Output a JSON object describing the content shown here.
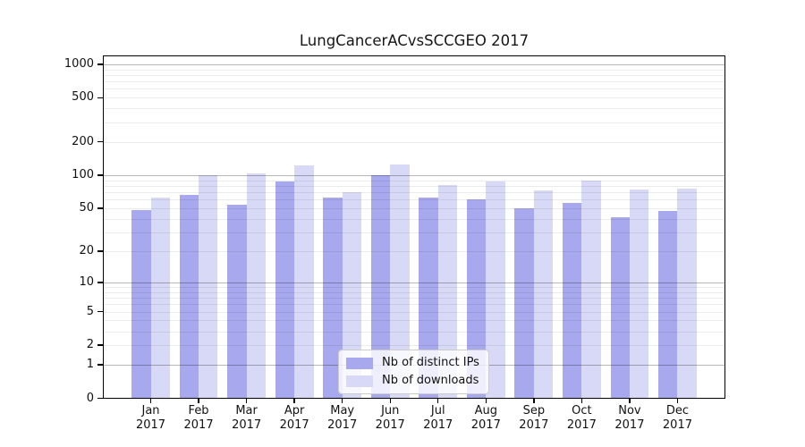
{
  "chart_data": {
    "type": "bar",
    "title": "LungCancerACvsSCCGEO 2017",
    "categories": [
      {
        "month": "Jan",
        "year": "2017"
      },
      {
        "month": "Feb",
        "year": "2017"
      },
      {
        "month": "Mar",
        "year": "2017"
      },
      {
        "month": "Apr",
        "year": "2017"
      },
      {
        "month": "May",
        "year": "2017"
      },
      {
        "month": "Jun",
        "year": "2017"
      },
      {
        "month": "Jul",
        "year": "2017"
      },
      {
        "month": "Aug",
        "year": "2017"
      },
      {
        "month": "Sep",
        "year": "2017"
      },
      {
        "month": "Oct",
        "year": "2017"
      },
      {
        "month": "Nov",
        "year": "2017"
      },
      {
        "month": "Dec",
        "year": "2017"
      }
    ],
    "series": [
      {
        "name": "Nb of distinct IPs",
        "color": "#a8a8ee",
        "values": [
          48,
          66,
          54,
          88,
          62,
          99,
          63,
          60,
          50,
          56,
          41,
          47
        ]
      },
      {
        "name": "Nb of downloads",
        "color": "#d8d9f6",
        "values": [
          63,
          100,
          103,
          122,
          70,
          125,
          82,
          88,
          72,
          89,
          74,
          76
        ]
      }
    ],
    "yticks": [
      0,
      1,
      2,
      5,
      10,
      20,
      50,
      100,
      200,
      500,
      1000
    ],
    "xlabel": "",
    "ylabel": "",
    "scale": "log1p",
    "ylim": [
      0,
      1200
    ],
    "grid": true,
    "legend_position": "lower center",
    "colors": {
      "major_grid": "rgba(0,0,0,0.28)",
      "minor_grid": "rgba(0,0,0,0.08)",
      "spine": "#000000",
      "background": "#ffffff"
    }
  }
}
